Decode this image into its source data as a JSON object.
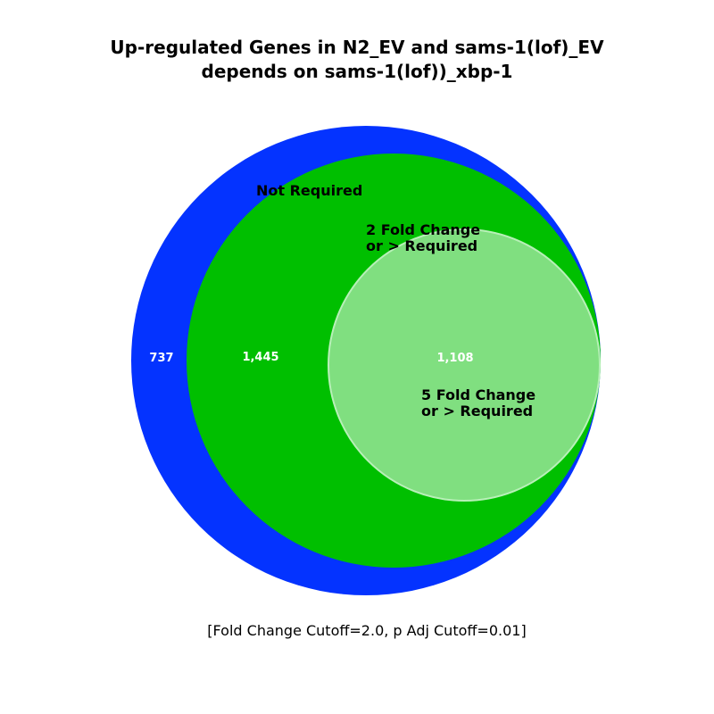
{
  "title": {
    "line1": "Up-regulated Genes in N2_EV and sams-1(lof)_EV",
    "line2": "depends on sams-1(lof))_xbp-1"
  },
  "footnote": "[Fold Change Cutoff=2.0, p Adj Cutoff=0.01]",
  "sets": [
    {
      "label": "Not Required",
      "color": "#0433ff",
      "count": "737"
    },
    {
      "label_line1": "2 Fold Change",
      "label_line2": "or > Required",
      "color": "#00bf00",
      "count": "1,445"
    },
    {
      "label_line1": "5 Fold Change",
      "label_line2": "or > Required",
      "color": "#80df80",
      "count": "1,108"
    }
  ]
}
